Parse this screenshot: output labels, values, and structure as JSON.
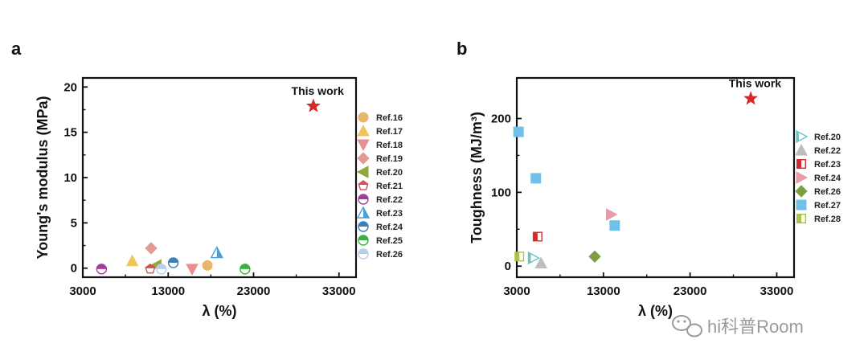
{
  "watermark": {
    "text": "hi科普Room",
    "icon": "wechat-bubble-icon",
    "color": "#9a9a9a"
  },
  "chart_data": [
    {
      "panel": "a",
      "type": "scatter",
      "title": "",
      "xlabel": "λ (%)",
      "ylabel": "Young's modulus (MPa)",
      "xlim": [
        3000,
        35000
      ],
      "ylim": [
        -1,
        21
      ],
      "xticks": [
        3000,
        13000,
        23000,
        33000
      ],
      "xtick_labels": [
        "3000",
        "13000",
        "23000",
        "33000"
      ],
      "yticks": [
        0,
        5,
        10,
        15,
        20
      ],
      "ytick_labels": [
        "0",
        "5",
        "10",
        "15",
        "20"
      ],
      "grid": false,
      "legend_position": "right",
      "annotation": {
        "text": "This work",
        "x": 30000,
        "y": 17.9
      },
      "series": [
        {
          "name": "This work",
          "marker": "star",
          "color": "#d42a2a",
          "x": [
            30000
          ],
          "y": [
            17.9
          ],
          "in_legend": false
        },
        {
          "name": "Ref.16",
          "marker": "circle",
          "color": "#e8b66a",
          "x": [
            17600
          ],
          "y": [
            0.3
          ]
        },
        {
          "name": "Ref.17",
          "marker": "triangle-up",
          "color": "#f0c65c",
          "x": [
            8800
          ],
          "y": [
            0.8
          ]
        },
        {
          "name": "Ref.18",
          "marker": "triangle-down",
          "color": "#e89090",
          "x": [
            15800
          ],
          "y": [
            -0.1
          ]
        },
        {
          "name": "Ref.19",
          "marker": "diamond",
          "color": "#e39a92",
          "x": [
            11000
          ],
          "y": [
            2.2
          ]
        },
        {
          "name": "Ref.20",
          "marker": "triangle-left",
          "color": "#8fa83a",
          "x": [
            11600
          ],
          "y": [
            0.3
          ]
        },
        {
          "name": "Ref.21",
          "marker": "pentagon-half",
          "color": "#d25252",
          "x": [
            10900
          ],
          "y": [
            -0.1
          ]
        },
        {
          "name": "Ref.22",
          "marker": "circle-half-top",
          "color": "#a33e96",
          "x": [
            5200
          ],
          "y": [
            -0.1
          ]
        },
        {
          "name": "Ref.23",
          "marker": "triangle-half",
          "color": "#4b9fd3",
          "x": [
            18700
          ],
          "y": [
            1.7
          ]
        },
        {
          "name": "Ref.24",
          "marker": "circle-half-top",
          "color": "#3a7fb8",
          "x": [
            13600
          ],
          "y": [
            0.6
          ]
        },
        {
          "name": "Ref.25",
          "marker": "circle-half-top",
          "color": "#3cae48",
          "x": [
            22000
          ],
          "y": [
            -0.1
          ]
        },
        {
          "name": "Ref.26",
          "marker": "circle-half-top",
          "color": "#b7cfea",
          "x": [
            12200
          ],
          "y": [
            -0.1
          ]
        }
      ]
    },
    {
      "panel": "b",
      "type": "scatter",
      "title": "",
      "xlabel": "λ (%)",
      "ylabel": "Toughness (MJ/m³)",
      "xlim": [
        3000,
        35000
      ],
      "ylim": [
        -15,
        255
      ],
      "xticks": [
        3000,
        13000,
        23000,
        33000
      ],
      "xtick_labels": [
        "3000",
        "13000",
        "23000",
        "33000"
      ],
      "yticks": [
        0,
        100,
        200
      ],
      "ytick_labels": [
        "0",
        "100",
        "200"
      ],
      "grid": false,
      "legend_position": "right",
      "annotation": {
        "text": "This work",
        "x": 30000,
        "y": 227
      },
      "series": [
        {
          "name": "This work",
          "marker": "star",
          "color": "#d42a2a",
          "x": [
            30000
          ],
          "y": [
            227
          ],
          "in_legend": false
        },
        {
          "name": "Ref.20",
          "marker": "triangle-right-half",
          "color": "#6cc6c6",
          "x": [
            4900
          ],
          "y": [
            11
          ]
        },
        {
          "name": "Ref.22",
          "marker": "triangle-up",
          "color": "#bdbdbd",
          "x": [
            5800
          ],
          "y": [
            4
          ]
        },
        {
          "name": "Ref.23",
          "marker": "square-half",
          "color": "#d42a2a",
          "x": [
            5400
          ],
          "y": [
            40
          ]
        },
        {
          "name": "Ref.24",
          "marker": "triangle-right",
          "color": "#e89aa6",
          "x": [
            13900
          ],
          "y": [
            70
          ]
        },
        {
          "name": "Ref.26",
          "marker": "diamond",
          "color": "#7f9e42",
          "x": [
            12000
          ],
          "y": [
            13
          ]
        },
        {
          "name": "Ref.27",
          "marker": "square",
          "color": "#72c0ea",
          "x": [
            3200,
            5200,
            14300
          ],
          "y": [
            182,
            119,
            55
          ]
        },
        {
          "name": "Ref.28",
          "marker": "square-half",
          "color": "#a7c44a",
          "x": [
            3300
          ],
          "y": [
            13
          ]
        }
      ]
    }
  ]
}
